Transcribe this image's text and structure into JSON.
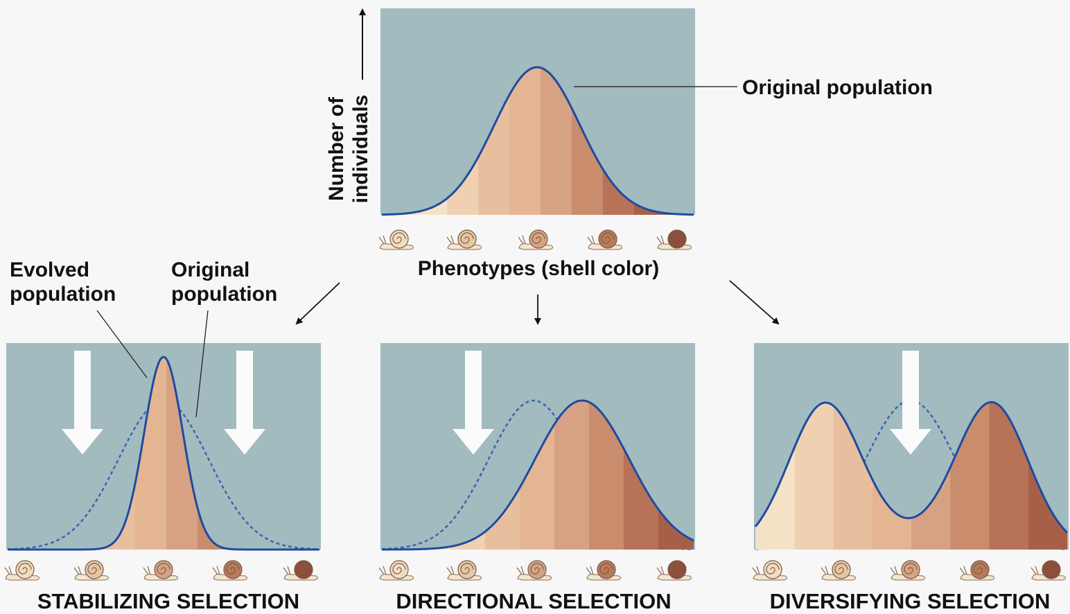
{
  "top_panel": {
    "y_axis_label": [
      "Number of",
      "individuals"
    ],
    "curve_label": "Original population",
    "x_axis_label": "Phenotypes (shell color)"
  },
  "panels": [
    {
      "title": "STABILIZING SELECTION",
      "evolved_label": [
        "Evolved",
        "population"
      ],
      "original_label": [
        "Original",
        "population"
      ]
    },
    {
      "title": "DIRECTIONAL SELECTION"
    },
    {
      "title": "DIVERSIFYING SELECTION"
    }
  ]
}
